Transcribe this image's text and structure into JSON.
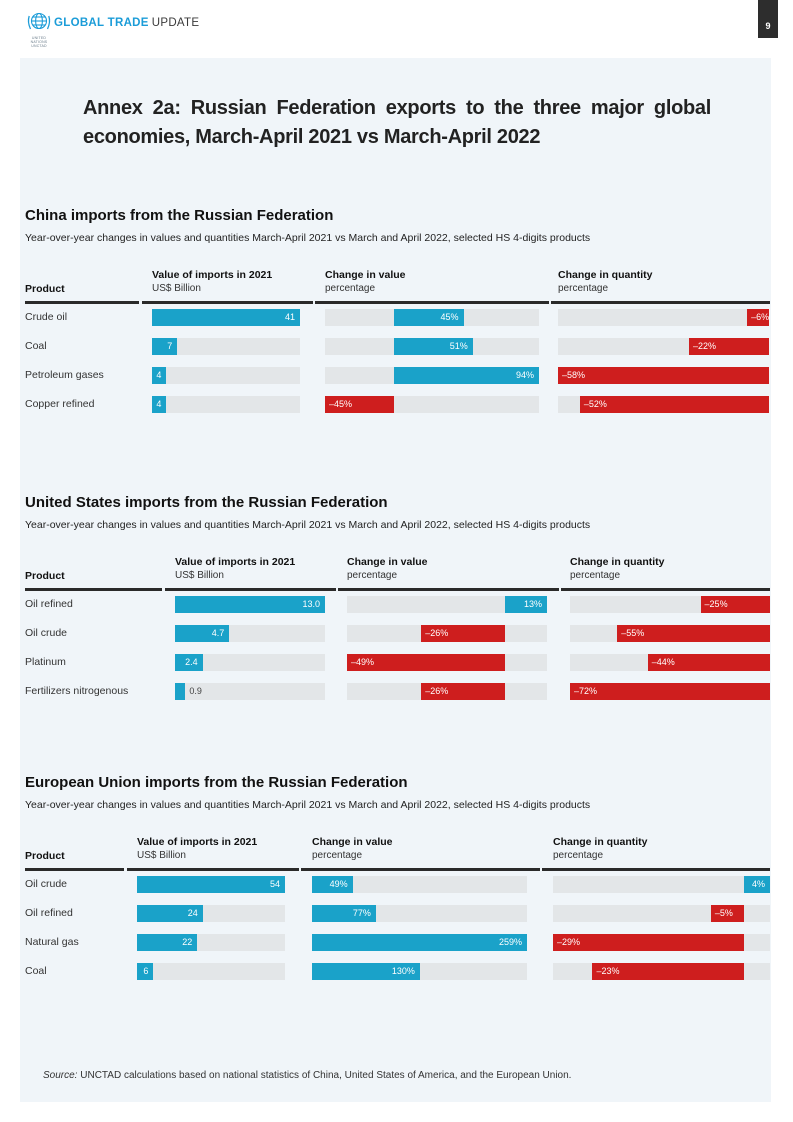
{
  "page": {
    "brand": {
      "bold": "GLOBAL TRADE",
      "light": "UPDATE",
      "logo_line1": "UNITED NATIONS",
      "logo_line2": "UNCTAD"
    },
    "page_number": "9",
    "title_line1": "Annex 2a: Russian Federation exports to the three major global",
    "title_line2": "economies, March-April 2021 vs March-April 2022",
    "source_label": "Source:",
    "source_text": "UNCTAD calculations based on national statistics of China, United States of America, and the European Union."
  },
  "colors": {
    "accent_blue": "#1aa2c9",
    "negative_red": "#ce1e1e",
    "track_gray": "#e3e6e8",
    "brand_blue": "#1b9cd8",
    "panel_bg": "#f0f5f9",
    "page_tab_bg": "#2d2d2d",
    "rule_dark": "#2a2a2a"
  },
  "chart_data": [
    {
      "type": "bar",
      "title": "China imports from the Russian Federation",
      "subtitle": "Year-over-year changes in values and quantities March-April 2021 vs March and April 2022, selected HS 4-digits products",
      "columns": {
        "product": "Product",
        "value": {
          "label": "Value of imports in 2021",
          "sub": "US$ Billion"
        },
        "change_value": {
          "label": "Change in value",
          "sub": "percentage"
        },
        "change_quantity": {
          "label": "Change in quantity",
          "sub": "percentage"
        }
      },
      "rows": [
        {
          "product": "Crude oil",
          "value": 41,
          "value_text": "41",
          "change_value": 45,
          "change_value_text": "45%",
          "change_quantity": -6,
          "change_quantity_text": "–6%"
        },
        {
          "product": "Coal",
          "value": 7,
          "value_text": "7",
          "change_value": 51,
          "change_value_text": "51%",
          "change_quantity": -22,
          "change_quantity_text": "–22%"
        },
        {
          "product": "Petroleum gases",
          "value": 4,
          "value_text": "4",
          "change_value": 94,
          "change_value_text": "94%",
          "change_quantity": -58,
          "change_quantity_text": "–58%"
        },
        {
          "product": "Copper refined",
          "value": 4,
          "value_text": "4",
          "change_value": -45,
          "change_value_text": "–45%",
          "change_quantity": -52,
          "change_quantity_text": "–52%"
        }
      ]
    },
    {
      "type": "bar",
      "title": "United States imports from the Russian Federation",
      "subtitle": "Year-over-year changes in values and quantities March-April 2021 vs March and April 2022, selected HS 4-digits products",
      "columns": {
        "product": "Product",
        "value": {
          "label": "Value of imports in 2021",
          "sub": "US$ Billion"
        },
        "change_value": {
          "label": "Change in value",
          "sub": "percentage"
        },
        "change_quantity": {
          "label": "Change in quantity",
          "sub": "percentage"
        }
      },
      "rows": [
        {
          "product": "Oil refined",
          "value": 13.0,
          "value_text": "13.0",
          "change_value": 13,
          "change_value_text": "13%",
          "change_quantity": -25,
          "change_quantity_text": "–25%"
        },
        {
          "product": "Oil crude",
          "value": 4.7,
          "value_text": "4.7",
          "change_value": -26,
          "change_value_text": "–26%",
          "change_quantity": -55,
          "change_quantity_text": "–55%"
        },
        {
          "product": "Platinum",
          "value": 2.4,
          "value_text": "2.4",
          "change_value": -49,
          "change_value_text": "–49%",
          "change_quantity": -44,
          "change_quantity_text": "–44%"
        },
        {
          "product": "Fertilizers nitrogenous",
          "value": 0.9,
          "value_text": "0.9",
          "change_value": -26,
          "change_value_text": "–26%",
          "change_quantity": -72,
          "change_quantity_text": "–72%"
        }
      ]
    },
    {
      "type": "bar",
      "title": "European Union imports from the Russian Federation",
      "subtitle": "Year-over-year changes in values and quantities March-April 2021 vs March and April 2022, selected HS 4-digits products",
      "columns": {
        "product": "Product",
        "value": {
          "label": "Value of imports in 2021",
          "sub": "US$ Billion"
        },
        "change_value": {
          "label": "Change in value",
          "sub": "percentage"
        },
        "change_quantity": {
          "label": "Change in quantity",
          "sub": "percentage"
        }
      },
      "rows": [
        {
          "product": "Oil crude",
          "value": 54,
          "value_text": "54",
          "change_value": 49,
          "change_value_text": "49%",
          "change_quantity": 4,
          "change_quantity_text": "4%"
        },
        {
          "product": "Oil refined",
          "value": 24,
          "value_text": "24",
          "change_value": 77,
          "change_value_text": "77%",
          "change_quantity": -5,
          "change_quantity_text": "–5%"
        },
        {
          "product": "Natural gas",
          "value": 22,
          "value_text": "22",
          "change_value": 259,
          "change_value_text": "259%",
          "change_quantity": -29,
          "change_quantity_text": "–29%"
        },
        {
          "product": "Coal",
          "value": 6,
          "value_text": "6",
          "change_value": 130,
          "change_value_text": "130%",
          "change_quantity": -23,
          "change_quantity_text": "–23%"
        }
      ]
    }
  ]
}
